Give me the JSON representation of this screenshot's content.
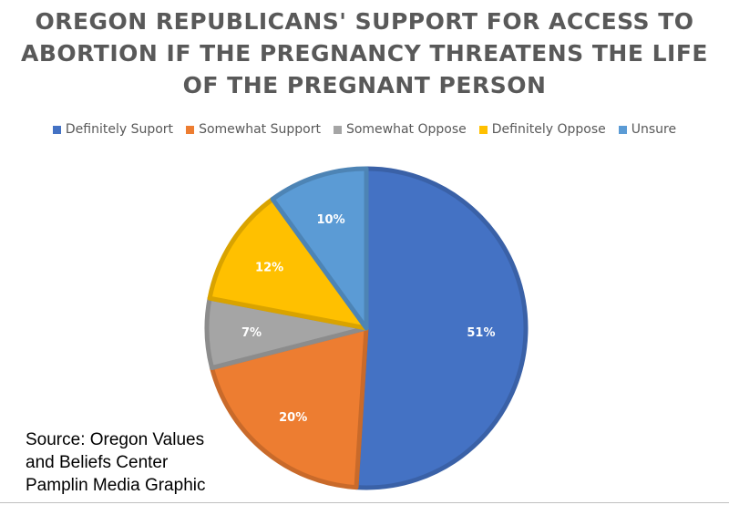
{
  "chart_data": {
    "type": "pie",
    "title_lines": [
      "OREGON REPUBLICANS' SUPPORT FOR ACCESS TO",
      "ABORTION IF THE PREGNANCY THREATENS THE LIFE",
      "OF THE PREGNANT PERSON"
    ],
    "legend_position": "top",
    "slices": [
      {
        "label": "Definitely Suport",
        "value": 51,
        "data_label": "51%",
        "color": "#4472C4"
      },
      {
        "label": "Somewhat Support",
        "value": 20,
        "data_label": "20%",
        "color": "#ED7D31"
      },
      {
        "label": "Somewhat Oppose",
        "value": 7,
        "data_label": "7%",
        "color": "#A5A5A5"
      },
      {
        "label": "Definitely Oppose",
        "value": 12,
        "data_label": "12%",
        "color": "#FFC000"
      },
      {
        "label": "Unsure",
        "value": 10,
        "data_label": "10%",
        "color": "#5B9BD5"
      }
    ]
  },
  "source_lines": [
    "Source: Oregon Values",
    "and Beliefs Center",
    "Pamplin Media Graphic"
  ]
}
